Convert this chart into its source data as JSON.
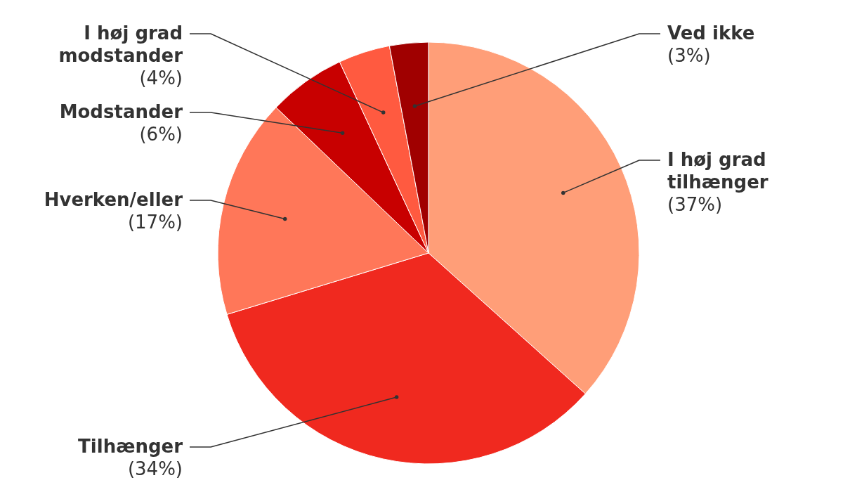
{
  "chart_data": {
    "type": "pie",
    "categories": [
      "I høj grad tilhænger",
      "Tilhænger",
      "Hverken/eller",
      "Modstander",
      "I høj grad modstander",
      "Ved ikke"
    ],
    "values": [
      37,
      34,
      17,
      6,
      4,
      3
    ],
    "colors": [
      "#ff9e78",
      "#f0291f",
      "#ff7759",
      "#c80000",
      "#ff5a40",
      "#a00000"
    ],
    "value_labels": [
      "(37%)",
      "(34%)",
      "(17%)",
      "(6%)",
      "(4%)",
      "(3%)"
    ]
  }
}
